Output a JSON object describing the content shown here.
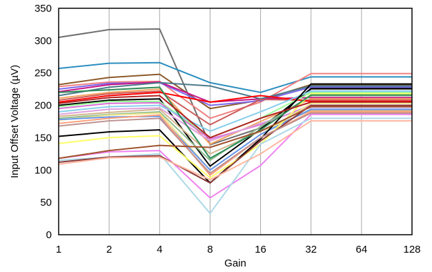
{
  "chart_data": {
    "type": "line",
    "title": "",
    "xlabel": "Gain",
    "ylabel": "Input Offset Voltage (µV)",
    "categories": [
      "1",
      "2",
      "4",
      "8",
      "16",
      "32",
      "64",
      "128"
    ],
    "ylim": [
      0,
      350
    ],
    "yticks": [
      "0",
      "50",
      "100",
      "150",
      "200",
      "250",
      "300",
      "350"
    ],
    "grid": "vertical",
    "legend": "none",
    "series": [
      {
        "color": "#6e6e6e",
        "values": [
          305,
          317,
          318,
          139,
          165,
          225,
          225,
          225
        ]
      },
      {
        "color": "#2a8dbf",
        "values": [
          257,
          265,
          266,
          235,
          220,
          244,
          244,
          244
        ]
      },
      {
        "color": "#f08080",
        "values": [
          229,
          236,
          237,
          180,
          205,
          249,
          249,
          249
        ]
      },
      {
        "color": "#8b5a2b",
        "values": [
          232,
          243,
          248,
          195,
          208,
          232,
          232,
          232
        ]
      },
      {
        "color": "#7b68ee",
        "values": [
          225,
          234,
          235,
          200,
          207,
          228,
          228,
          228
        ]
      },
      {
        "color": "#c71585",
        "values": [
          221,
          232,
          236,
          205,
          210,
          212,
          212,
          212
        ]
      },
      {
        "color": "#4b7a8c",
        "values": [
          215,
          228,
          235,
          230,
          210,
          230,
          230,
          230
        ]
      },
      {
        "color": "#f4a460",
        "values": [
          211,
          220,
          225,
          140,
          175,
          210,
          210,
          210
        ]
      },
      {
        "color": "#cd5c5c",
        "values": [
          208,
          218,
          222,
          170,
          209,
          208,
          208,
          208
        ]
      },
      {
        "color": "#ff0000",
        "values": [
          205,
          215,
          220,
          205,
          215,
          206,
          206,
          206
        ]
      },
      {
        "color": "#000000",
        "values": [
          200,
          208,
          210,
          106,
          163,
          226,
          226,
          226
        ]
      },
      {
        "color": "#98fb98",
        "values": [
          198,
          206,
          206,
          150,
          180,
          220,
          220,
          220
        ]
      },
      {
        "color": "#da70d6",
        "values": [
          195,
          203,
          204,
          148,
          170,
          200,
          200,
          200
        ]
      },
      {
        "color": "#87ceeb",
        "values": [
          190,
          198,
          200,
          160,
          190,
          222,
          222,
          222
        ]
      },
      {
        "color": "#dda0dd",
        "values": [
          186,
          194,
          196,
          145,
          172,
          197,
          197,
          197
        ]
      },
      {
        "color": "#d2b48c",
        "values": [
          183,
          189,
          194,
          125,
          160,
          192,
          192,
          192
        ]
      },
      {
        "color": "#8fbc8f",
        "values": [
          180,
          186,
          190,
          115,
          167,
          215,
          215,
          215
        ]
      },
      {
        "color": "#f0e68c",
        "values": [
          177,
          185,
          188,
          100,
          155,
          203,
          203,
          203
        ]
      },
      {
        "color": "#6495ed",
        "values": [
          178,
          182,
          183,
          100,
          155,
          194,
          194,
          194
        ]
      },
      {
        "color": "#ffa07a",
        "values": [
          172,
          180,
          185,
          92,
          150,
          190,
          190,
          190
        ]
      },
      {
        "color": "#000000",
        "values": [
          152,
          159,
          162,
          80,
          148,
          233,
          233,
          233
        ]
      },
      {
        "color": "#ffff66",
        "values": [
          141,
          150,
          153,
          88,
          140,
          218,
          218,
          218
        ]
      },
      {
        "color": "#ee82ee",
        "values": [
          118,
          128,
          130,
          57,
          107,
          186,
          186,
          186
        ]
      },
      {
        "color": "#add8e6",
        "values": [
          115,
          120,
          125,
          33,
          140,
          180,
          180,
          180
        ]
      },
      {
        "color": "#8b3a3a",
        "values": [
          112,
          120,
          122,
          80,
          145,
          200,
          200,
          200
        ]
      },
      {
        "color": "#ffb6a0",
        "values": [
          109,
          119,
          120,
          85,
          125,
          176,
          176,
          176
        ]
      },
      {
        "color": "#2e8b57",
        "values": [
          220,
          224,
          228,
          118,
          162,
          216,
          216,
          216
        ]
      },
      {
        "color": "#b22222",
        "values": [
          203,
          212,
          215,
          150,
          180,
          205,
          205,
          205
        ]
      },
      {
        "color": "#bc8f8f",
        "values": [
          168,
          176,
          180,
          95,
          150,
          188,
          188,
          188
        ]
      },
      {
        "color": "#a0522d",
        "values": [
          118,
          130,
          138,
          135,
          160,
          198,
          198,
          198
        ]
      }
    ]
  }
}
